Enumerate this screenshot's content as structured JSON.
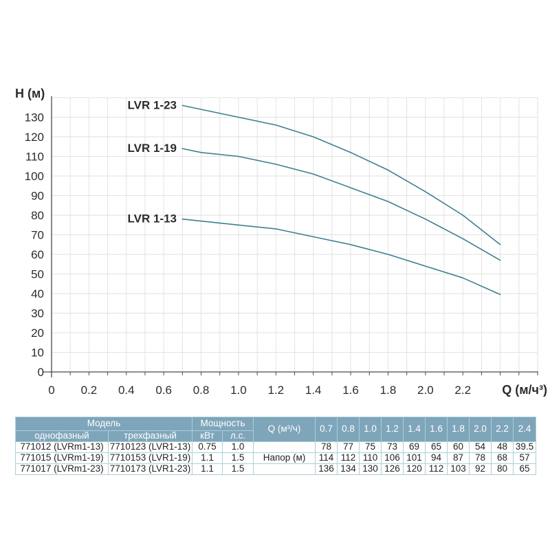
{
  "chart_data": {
    "type": "line",
    "title": "",
    "xlabel": "Q (м/ч³)",
    "ylabel": "H (м)",
    "x": [
      0.7,
      0.8,
      1.0,
      1.2,
      1.4,
      1.6,
      1.8,
      2.0,
      2.2,
      2.4
    ],
    "series": [
      {
        "name": "LVR 1-23",
        "values": [
          136,
          134,
          130,
          126,
          120,
          112,
          103,
          92,
          80,
          65
        ]
      },
      {
        "name": "LVR 1-19",
        "values": [
          114,
          112,
          110,
          106,
          101,
          94,
          87,
          78,
          68,
          57
        ]
      },
      {
        "name": "LVR 1-13",
        "values": [
          78,
          77,
          75,
          73,
          69,
          65,
          60,
          54,
          48,
          39.5
        ]
      }
    ],
    "xlim": [
      0,
      2.6
    ],
    "ylim": [
      0,
      140
    ],
    "x_tick_label_step": 0.2,
    "x_tick_label_max": 2.2,
    "y_tick_label_step": 10,
    "y_tick_label_max": 130,
    "minor_x_grid_step": 0.1,
    "grid": true,
    "legend_position": "inline-labels-left-of-curves",
    "line_color": "#3b7f90",
    "label_color": "#1b7389",
    "grid_color": "#e2e2e2",
    "axis_color": "#4a4a4a"
  },
  "table": {
    "header": {
      "model": "Модель",
      "power": "Мощность",
      "single_phase": "однофазный",
      "three_phase": "трехфазный",
      "kw": "кВт",
      "hp": "л.с.",
      "q_label": "Q (м³/ч)",
      "q_values": [
        "0.7",
        "0.8",
        "1.0",
        "1.2",
        "1.4",
        "1.6",
        "1.8",
        "2.0",
        "2.2",
        "2.4"
      ]
    },
    "napor_label": "Напор (м)",
    "rows": [
      {
        "single": "771012 (LVRm1-13)",
        "three": "7710123 (LVR1-13)",
        "kw": "0.75",
        "hp": "1.0",
        "heads": [
          "78",
          "77",
          "75",
          "73",
          "69",
          "65",
          "60",
          "54",
          "48",
          "39.5"
        ]
      },
      {
        "single": "771015 (LVRm1-19)",
        "three": "7710153 (LVR1-19)",
        "kw": "1.1",
        "hp": "1.5",
        "heads": [
          "114",
          "112",
          "110",
          "106",
          "101",
          "94",
          "87",
          "78",
          "68",
          "57"
        ]
      },
      {
        "single": "771017 (LVRm1-23)",
        "three": "7710173 (LVR1-23)",
        "kw": "1.1",
        "hp": "1.5",
        "heads": [
          "136",
          "134",
          "130",
          "126",
          "120",
          "112",
          "103",
          "92",
          "80",
          "65"
        ]
      }
    ],
    "colors": {
      "header_bg": "#7fa5ba",
      "header_text": "#ffffff",
      "border": "#abcfda"
    }
  }
}
